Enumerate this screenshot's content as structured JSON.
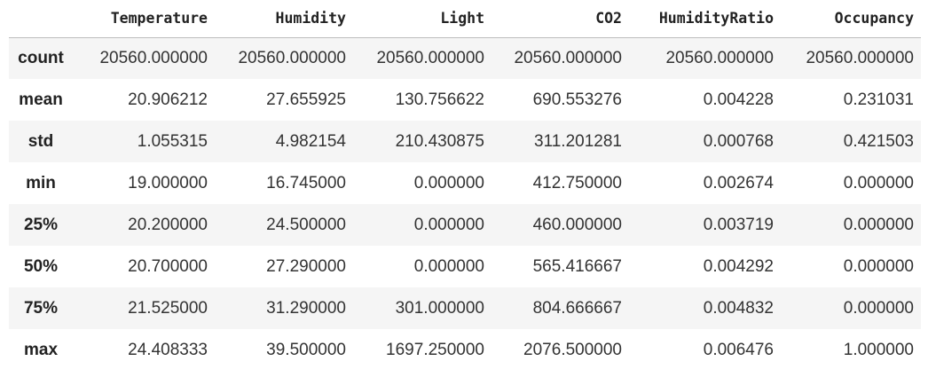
{
  "table": {
    "columns": [
      "Temperature",
      "Humidity",
      "Light",
      "CO2",
      "HumidityRatio",
      "Occupancy"
    ],
    "rows": [
      {
        "label": "count",
        "values": [
          "20560.000000",
          "20560.000000",
          "20560.000000",
          "20560.000000",
          "20560.000000",
          "20560.000000"
        ]
      },
      {
        "label": "mean",
        "values": [
          "20.906212",
          "27.655925",
          "130.756622",
          "690.553276",
          "0.004228",
          "0.231031"
        ]
      },
      {
        "label": "std",
        "values": [
          "1.055315",
          "4.982154",
          "210.430875",
          "311.201281",
          "0.000768",
          "0.421503"
        ]
      },
      {
        "label": "min",
        "values": [
          "19.000000",
          "16.745000",
          "0.000000",
          "412.750000",
          "0.002674",
          "0.000000"
        ]
      },
      {
        "label": "25%",
        "values": [
          "20.200000",
          "24.500000",
          "0.000000",
          "460.000000",
          "0.003719",
          "0.000000"
        ]
      },
      {
        "label": "50%",
        "values": [
          "20.700000",
          "27.290000",
          "0.000000",
          "565.416667",
          "0.004292",
          "0.000000"
        ]
      },
      {
        "label": "75%",
        "values": [
          "21.525000",
          "31.290000",
          "301.000000",
          "804.666667",
          "0.004832",
          "0.000000"
        ]
      },
      {
        "label": "max",
        "values": [
          "24.408333",
          "39.500000",
          "1697.250000",
          "2076.500000",
          "0.006476",
          "1.000000"
        ]
      }
    ]
  }
}
